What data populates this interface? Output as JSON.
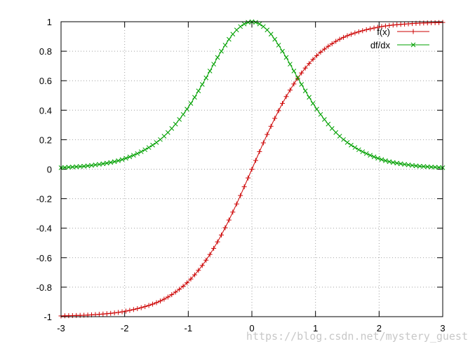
{
  "chart_data": {
    "type": "line",
    "title": "",
    "xlabel": "",
    "ylabel": "",
    "xlim": [
      -3,
      3
    ],
    "ylim": [
      -1,
      1
    ],
    "grid": true,
    "legend_position": "top-right",
    "x_ticks": [
      -3,
      -2,
      -1,
      0,
      1,
      2,
      3
    ],
    "y_ticks": [
      -1,
      -0.8,
      -0.6,
      -0.4,
      -0.2,
      0,
      0.2,
      0.4,
      0.6,
      0.8,
      1
    ],
    "x_tick_labels": [
      "-3",
      "-2",
      "-1",
      "0",
      "1",
      "2",
      "3"
    ],
    "y_tick_labels": [
      "-1",
      "-0.8",
      "-0.6",
      "-0.4",
      "-0.2",
      "0",
      "0.2",
      "0.4",
      "0.6",
      "0.8",
      "1"
    ],
    "x": [
      -3.0,
      -2.5,
      -2.0,
      -1.5,
      -1.25,
      -1.0,
      -0.75,
      -0.5,
      -0.25,
      0.0,
      0.25,
      0.5,
      0.75,
      1.0,
      1.25,
      1.5,
      2.0,
      2.5,
      3.0
    ],
    "series": [
      {
        "name": "f(x)",
        "color": "#cc0000",
        "marker": "plus",
        "values": [
          -0.995,
          -0.987,
          -0.964,
          -0.905,
          -0.848,
          -0.762,
          -0.635,
          -0.462,
          -0.245,
          0.0,
          0.245,
          0.462,
          0.635,
          0.762,
          0.848,
          0.905,
          0.964,
          0.987,
          0.995
        ]
      },
      {
        "name": "df/dx",
        "color": "#00a000",
        "marker": "cross",
        "values": [
          0.01,
          0.027,
          0.071,
          0.181,
          0.281,
          0.42,
          0.597,
          0.786,
          0.94,
          1.0,
          0.94,
          0.786,
          0.597,
          0.42,
          0.281,
          0.181,
          0.071,
          0.027,
          0.01
        ]
      }
    ]
  },
  "watermark": "https://blog.csdn.net/mystery_guest"
}
